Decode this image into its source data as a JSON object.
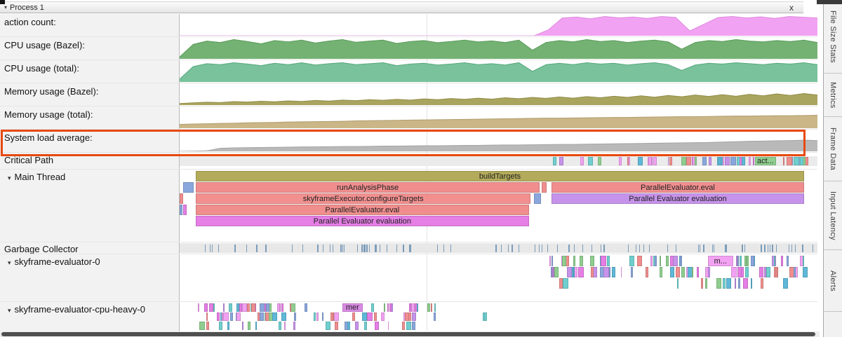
{
  "glyphs": {
    "expanded": "▾"
  },
  "header": {
    "title": "Process 1",
    "close_label": "x"
  },
  "palette": [
    "#f08e8e",
    "#8aa7dd",
    "#6fcfcf",
    "#8fce8f",
    "#e57ee5",
    "#c693ea",
    "#f2a2f2",
    "#5fb8d8"
  ],
  "highlight": {
    "color": "#e8490f",
    "target": "System load average:"
  },
  "counters": [
    {
      "label": "action count:",
      "color": "#f2a2f2",
      "stroke": "#dd8cdd",
      "values": [
        0,
        0,
        0,
        0,
        0,
        0,
        0,
        0,
        0,
        0,
        0,
        0,
        0,
        0,
        0,
        0,
        0,
        0,
        0,
        0,
        0,
        0,
        0,
        0,
        0,
        0,
        0.3,
        0.92,
        0.97,
        0.88,
        1,
        0.93,
        0.97,
        0.9,
        1,
        0.95,
        0.25,
        0.6,
        0.95,
        1,
        0.92,
        0.98,
        0.9,
        1,
        0.96,
        0.92
      ]
    },
    {
      "label": "CPU usage (Bazel):",
      "color": "#74b274",
      "stroke": "#579a57",
      "values": [
        0.1,
        0.75,
        0.92,
        0.85,
        1,
        0.9,
        0.78,
        0.95,
        0.88,
        0.97,
        0.82,
        0.92,
        1,
        0.86,
        0.92,
        0.97,
        0.8,
        0.9,
        0.95,
        0.84,
        0.9,
        0.97,
        0.88,
        0.93,
        0.85,
        0.97,
        0.45,
        0.85,
        0.95,
        0.88,
        1,
        0.9,
        0.95,
        0.85,
        0.92,
        0.97,
        0.88,
        0.5,
        0.85,
        0.95,
        0.9,
        1,
        0.92,
        0.88,
        0.95,
        0.9,
        0.97,
        0.85
      ]
    },
    {
      "label": "CPU usage (total):",
      "color": "#79c29b",
      "stroke": "#58a87e",
      "values": [
        0.15,
        0.8,
        0.95,
        0.9,
        1,
        0.93,
        0.85,
        0.97,
        0.9,
        1,
        0.88,
        0.95,
        1,
        0.9,
        0.95,
        1,
        0.85,
        0.93,
        0.97,
        0.88,
        0.93,
        1,
        0.9,
        0.95,
        0.88,
        1,
        0.55,
        0.9,
        0.97,
        0.9,
        1,
        0.93,
        0.97,
        0.88,
        0.95,
        1,
        0.9,
        0.6,
        0.88,
        0.97,
        0.93,
        1,
        0.95,
        0.9,
        0.97,
        0.93,
        1,
        0.9
      ]
    },
    {
      "label": "Memory usage (Bazel):",
      "color": "#aaa55e",
      "stroke": "#908b46",
      "values": [
        0.08,
        0.12,
        0.15,
        0.13,
        0.18,
        0.16,
        0.2,
        0.17,
        0.22,
        0.19,
        0.24,
        0.21,
        0.26,
        0.23,
        0.28,
        0.25,
        0.3,
        0.26,
        0.32,
        0.28,
        0.34,
        0.3,
        0.36,
        0.31,
        0.38,
        0.33,
        0.4,
        0.35,
        0.42,
        0.36,
        0.44,
        0.38,
        0.46,
        0.4,
        0.48,
        0.41,
        0.5,
        0.43,
        0.52,
        0.45,
        0.54,
        0.46,
        0.56,
        0.48,
        0.58,
        0.5,
        0.6,
        0.52
      ]
    },
    {
      "label": "Memory usage (total):",
      "color": "#cab687",
      "stroke": "#b09c6b",
      "values": [
        0.2,
        0.22,
        0.23,
        0.25,
        0.26,
        0.28,
        0.29,
        0.3,
        0.32,
        0.33,
        0.34,
        0.35,
        0.36,
        0.38,
        0.39,
        0.4,
        0.41,
        0.42,
        0.43,
        0.44,
        0.45,
        0.46,
        0.47,
        0.48,
        0.49,
        0.5,
        0.51,
        0.52,
        0.52,
        0.53,
        0.54,
        0.55,
        0.56,
        0.56,
        0.57,
        0.58,
        0.59,
        0.6,
        0.6,
        0.61,
        0.62,
        0.63,
        0.63,
        0.64,
        0.65,
        0.65,
        0.66,
        0.67
      ]
    },
    {
      "label": "System load average:",
      "color": "#b9b9b9",
      "stroke": "#a3a3a3",
      "values": [
        0,
        0.01,
        0.03,
        0.16,
        0.18,
        0.19,
        0.2,
        0.21,
        0.22,
        0.23,
        0.23,
        0.24,
        0.25,
        0.25,
        0.26,
        0.27,
        0.27,
        0.28,
        0.29,
        0.29,
        0.3,
        0.31,
        0.31,
        0.32,
        0.33,
        0.33,
        0.34,
        0.35,
        0.36,
        0.36,
        0.37,
        0.38,
        0.39,
        0.4,
        0.41,
        0.42,
        0.43,
        0.44,
        0.45,
        0.46,
        0.48,
        0.5,
        0.52,
        0.53,
        0.55,
        0.56,
        0.58,
        0.56
      ]
    }
  ],
  "tracks": {
    "critical_path": {
      "label": "Critical Path",
      "rows": [
        {
          "slices": [
            {
              "x": 0.902,
              "w": 0.033,
              "c": "#8fce8f",
              "label": "act..."
            }
          ],
          "fields": [
            {
              "start": 0.585,
              "end": 0.6,
              "count": 2,
              "seed": 31
            },
            {
              "start": 0.628,
              "end": 0.66,
              "count": 3,
              "seed": 32
            },
            {
              "start": 0.685,
              "end": 0.9,
              "count": 30,
              "seed": 33
            },
            {
              "start": 0.945,
              "end": 1.0,
              "count": 9,
              "seed": 34
            }
          ]
        }
      ]
    },
    "main_thread": {
      "label": "Main Thread",
      "rows": [
        {
          "slices": [
            {
              "x": 0.0254,
              "w": 0.9536,
              "c": "#b3ab5b",
              "label": "buildTargets"
            }
          ]
        },
        {
          "slices": [
            {
              "x": 0.0055,
              "w": 0.0165,
              "c": "#8aa7dd"
            },
            {
              "x": 0.0254,
              "w": 0.539,
              "c": "#f08e8e",
              "label": "runAnalysisPhase"
            },
            {
              "x": 0.568,
              "w": 0.007,
              "c": "#f08e8e"
            },
            {
              "x": 0.583,
              "w": 0.396,
              "c": "#f08e8e",
              "label": "ParallelEvaluator.eval"
            }
          ]
        },
        {
          "slices": [
            {
              "x": 0,
              "w": 0.005,
              "c": "#f08e8e"
            },
            {
              "x": 0.0254,
              "w": 0.525,
              "c": "#f29090",
              "label": "skyframeExecutor.configureTargets"
            },
            {
              "x": 0.556,
              "w": 0.011,
              "c": "#8aa7dd"
            },
            {
              "x": 0.583,
              "w": 0.396,
              "c": "#c693ea",
              "label": "Parallel Evaluator evaluation"
            }
          ]
        },
        {
          "slices": [
            {
              "x": 0,
              "w": 0.004,
              "c": "#8aa7dd"
            },
            {
              "x": 0.0055,
              "w": 0.006,
              "c": "#e57ee5"
            },
            {
              "x": 0.0254,
              "w": 0.522,
              "c": "#f08e8e",
              "label": "ParallelEvaluator.eval"
            }
          ]
        },
        {
          "slices": [
            {
              "x": 0.0254,
              "w": 0.522,
              "c": "#e57ee5",
              "label": "Parallel Evaluator evaluation"
            }
          ]
        }
      ]
    },
    "garbage_collector": {
      "label": "Garbage Collector",
      "rows": [
        {
          "fields": [
            {
              "start": 0.03,
              "end": 1.0,
              "count": 85,
              "seed": 41,
              "color": "#8fb6d9",
              "wMin": 0.0008,
              "wMax": 0.002
            }
          ]
        }
      ]
    },
    "skyframe_evaluator_0": {
      "label": "skyframe-evaluator-0",
      "rows": [
        {
          "slices": [
            {
              "x": 0.828,
              "w": 0.04,
              "c": "#f2a2f2",
              "label": "m..."
            }
          ],
          "fields": [
            {
              "start": 0.578,
              "end": 0.79,
              "count": 24,
              "seed": 21
            },
            {
              "start": 0.872,
              "end": 1.0,
              "count": 14,
              "seed": 22
            }
          ]
        },
        {
          "fields": [
            {
              "start": 0.578,
              "end": 1.0,
              "count": 46,
              "seed": 23
            }
          ]
        },
        {
          "fields": [
            {
              "start": 0.593,
              "end": 0.615,
              "count": 2,
              "seed": 24
            },
            {
              "start": 0.77,
              "end": 0.96,
              "count": 12,
              "seed": 25
            }
          ]
        }
      ]
    },
    "skyframe_evaluator_cpu_heavy_0": {
      "label": "skyframe-evaluator-cpu-heavy-0",
      "rows": [
        {
          "slices": [
            {
              "x": 0.255,
              "w": 0.032,
              "c": "#d98ae3",
              "label": "mer"
            }
          ],
          "fields": [
            {
              "start": 0.024,
              "end": 0.2,
              "count": 26,
              "seed": 11
            },
            {
              "start": 0.295,
              "end": 0.4,
              "count": 12,
              "seed": 12
            }
          ]
        },
        {
          "fields": [
            {
              "start": 0.024,
              "end": 0.4,
              "count": 40,
              "seed": 13
            },
            {
              "start": 0.455,
              "end": 0.5,
              "count": 2,
              "seed": 14,
              "color": "#6fcfcf"
            }
          ]
        },
        {
          "fields": [
            {
              "start": 0.024,
              "end": 0.37,
              "count": 24,
              "seed": 15
            }
          ]
        }
      ]
    }
  },
  "sidebar": {
    "tabs": [
      "File Size Stats",
      "Metrics",
      "Frame Data",
      "Input Latency",
      "Alerts"
    ]
  }
}
